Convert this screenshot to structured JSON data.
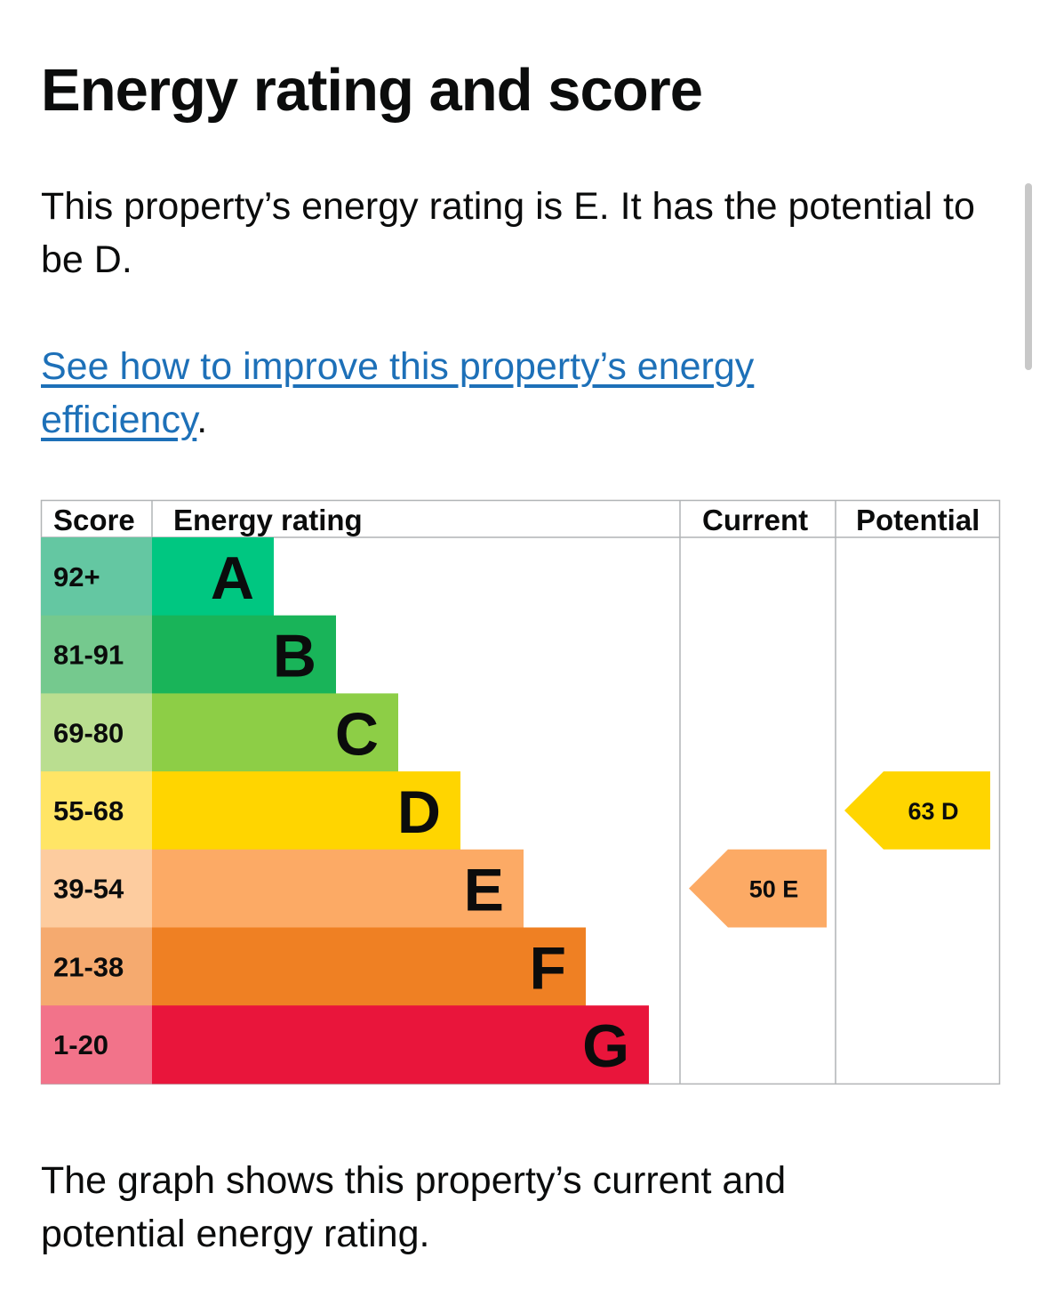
{
  "page": {
    "title": "Energy rating and score",
    "intro": "This property’s energy rating is E. It has the potential to be D.",
    "link_text": "See how to improve this property’s energy efficiency",
    "link_suffix": ".",
    "caption": "The graph shows this property’s current and potential energy rating."
  },
  "chart_data": {
    "type": "bar",
    "columns": [
      "Score",
      "Energy rating",
      "Current",
      "Potential"
    ],
    "bands": [
      {
        "score": "92+",
        "letter": "A",
        "color": "#008054",
        "bar_color": "#00c781",
        "score_bg": "#64c7a2"
      },
      {
        "score": "81-91",
        "letter": "B",
        "color": "#19b459",
        "bar_color": "#19b459",
        "score_bg": "#75c98e"
      },
      {
        "score": "69-80",
        "letter": "C",
        "color": "#8dce46",
        "bar_color": "#8dce46",
        "score_bg": "#bade90"
      },
      {
        "score": "55-68",
        "letter": "D",
        "color": "#ffd500",
        "bar_color": "#ffd500",
        "score_bg": "#ffe566"
      },
      {
        "score": "39-54",
        "letter": "E",
        "color": "#fcaa65",
        "bar_color": "#fcaa65",
        "score_bg": "#fdcc9f"
      },
      {
        "score": "21-38",
        "letter": "F",
        "color": "#ef8023",
        "bar_color": "#ef8023",
        "score_bg": "#f5aa6f"
      },
      {
        "score": "1-20",
        "letter": "G",
        "color": "#e9153b",
        "bar_color": "#e9153b",
        "score_bg": "#f2738a"
      }
    ],
    "current": {
      "score": 50,
      "letter": "E",
      "label": "50  E",
      "color": "#fcaa65"
    },
    "potential": {
      "score": 63,
      "letter": "D",
      "label": "63  D",
      "color": "#ffd500"
    }
  }
}
